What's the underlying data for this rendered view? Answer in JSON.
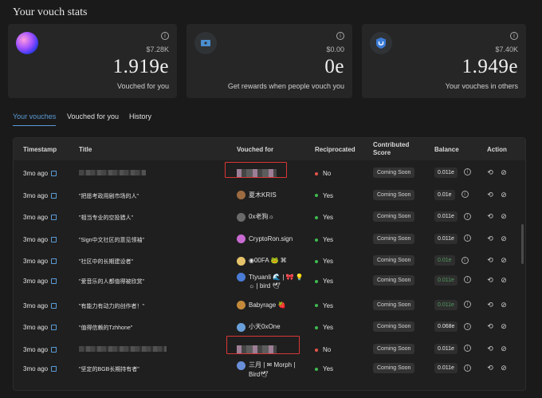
{
  "page": {
    "title": "Your vouch stats"
  },
  "cards": [
    {
      "small": "$7.28K",
      "big": "1.919e",
      "caption": "Vouched for you",
      "icon": "nft-avatar"
    },
    {
      "small": "$0.00",
      "big": "0e",
      "caption": "Get rewards when people vouch you",
      "icon": "ticket-icon"
    },
    {
      "small": "$7.40K",
      "big": "1.949e",
      "caption": "Your vouches in others",
      "icon": "vouch-shield-icon"
    }
  ],
  "tabs": [
    {
      "label": "Your vouches",
      "active": true
    },
    {
      "label": "Vouched for you",
      "active": false
    },
    {
      "label": "History",
      "active": false
    }
  ],
  "table": {
    "headers": {
      "timestamp": "Timestamp",
      "title": "Title",
      "vouched_for": "Vouched for",
      "reciprocated": "Reciprocated",
      "score_line1": "Contributed",
      "score_line2": "Score",
      "balance": "Balance",
      "action": "Action"
    },
    "rows": [
      {
        "ts": "3mo ago",
        "title": "",
        "user": "",
        "recip": "No",
        "score": "Coming Soon",
        "balance": "0.011e"
      },
      {
        "ts": "3mo ago",
        "title": "\"把愿考政用剧市场的人\"",
        "user": "夏木KRIS",
        "recip": "Yes",
        "score": "Coming Soon",
        "balance": "0.01e"
      },
      {
        "ts": "3mo ago",
        "title": "\"相当专业的空投猎人\"",
        "user": "0x老狗☼",
        "recip": "Yes",
        "score": "Coming Soon",
        "balance": "0.011e"
      },
      {
        "ts": "3mo ago",
        "title": "\"Sign中文社区的意见领袖\"",
        "user": "CryptoRon.sign",
        "recip": "Yes",
        "score": "Coming Soon",
        "balance": "0.011e"
      },
      {
        "ts": "3mo ago",
        "title": "\"社区中的长期建设者\"",
        "user": "◉00FA 🐸 ⌘",
        "recip": "Yes",
        "score": "Coming Soon",
        "balance": "0.01e"
      },
      {
        "ts": "3mo ago",
        "title": "\"爱音乐的人都值得被欣赏\"",
        "user": "Ttyuanli 🌊 | 🎀 💡",
        "user2": "☼ | bird 🕊",
        "recip": "Yes",
        "score": "Coming Soon",
        "balance": "0.011e"
      },
      {
        "ts": "3mo ago",
        "title": "\"有能力有动力的创作者！\"",
        "user": "Babyrage 🍓",
        "recip": "Yes",
        "score": "Coming Soon",
        "balance": "0.011e"
      },
      {
        "ts": "3mo ago",
        "title": "\"值得信赖的Tzhhone\"",
        "user": "小天0xOne",
        "recip": "Yes",
        "score": "Coming Soon",
        "balance": "0.068e"
      },
      {
        "ts": "3mo ago",
        "title": "",
        "user": "",
        "recip": "No",
        "score": "Coming Soon",
        "balance": "0.011e"
      },
      {
        "ts": "3mo ago",
        "title": "\"坚定的BGB长期持有者\"",
        "user": "三月 | ✉ Morph |",
        "user2": "Bird🕊",
        "recip": "Yes",
        "score": "Coming Soon",
        "balance": "0.011e"
      }
    ]
  },
  "colors": {
    "accent": "#5b9bd5",
    "yes": "#3fb950",
    "no": "#e5534b",
    "highlight": "#d93636"
  }
}
